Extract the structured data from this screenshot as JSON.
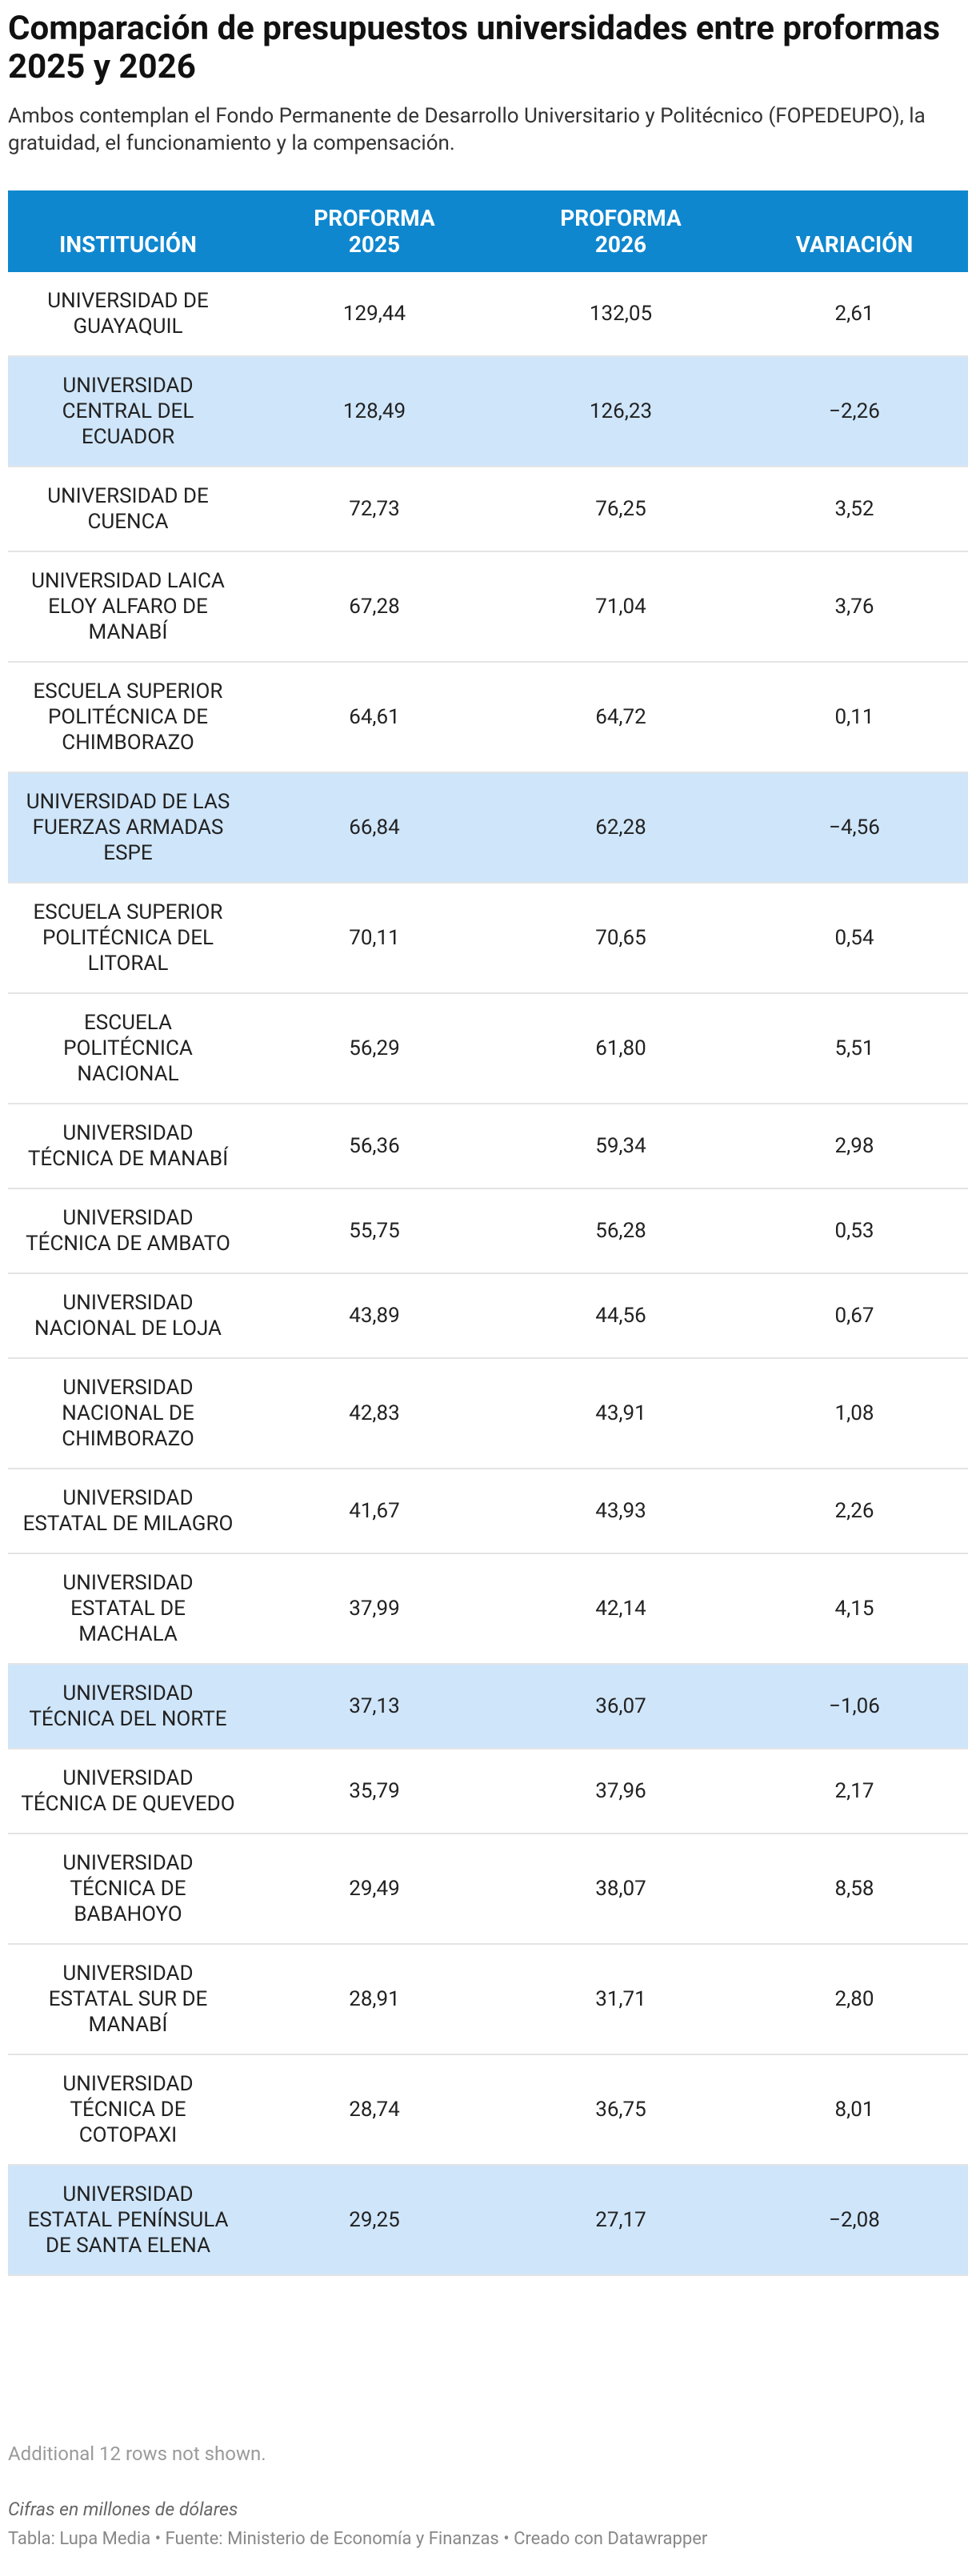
{
  "header": {
    "title": "Comparación de presupuestos universidades entre proformas 2025 y 2026",
    "subtitle": "Ambos contemplan el Fondo Permanente de Desarrollo Universitario y Politécnico (FOPEDEUPO), la gratuidad, el funcionamiento y la compensación."
  },
  "table": {
    "columns": [
      "INSTITUCIÓN",
      "PROFORMA 2025",
      "PROFORMA 2026",
      "VARIACIÓN"
    ],
    "rows": [
      [
        "UNIVERSIDAD DE GUAYAQUIL",
        "129,44",
        "132,05",
        "2,61"
      ],
      [
        "UNIVERSIDAD CENTRAL DEL ECUADOR",
        "128,49",
        "126,23",
        "−2,26"
      ],
      [
        "UNIVERSIDAD DE CUENCA",
        "72,73",
        "76,25",
        "3,52"
      ],
      [
        "UNIVERSIDAD LAICA ELOY ALFARO DE MANABÍ",
        "67,28",
        "71,04",
        "3,76"
      ],
      [
        "ESCUELA SUPERIOR POLITÉCNICA DE CHIMBORAZO",
        "64,61",
        "64,72",
        "0,11"
      ],
      [
        "UNIVERSIDAD DE LAS FUERZAS ARMADAS ESPE",
        "66,84",
        "62,28",
        "−4,56"
      ],
      [
        "ESCUELA SUPERIOR POLITÉCNICA DEL LITORAL",
        "70,11",
        "70,65",
        "0,54"
      ],
      [
        "ESCUELA POLITÉCNICA NACIONAL",
        "56,29",
        "61,80",
        "5,51"
      ],
      [
        "UNIVERSIDAD TÉCNICA DE MANABÍ",
        "56,36",
        "59,34",
        "2,98"
      ],
      [
        "UNIVERSIDAD TÉCNICA DE AMBATO",
        "55,75",
        "56,28",
        "0,53"
      ],
      [
        "UNIVERSIDAD NACIONAL DE LOJA",
        "43,89",
        "44,56",
        "0,67"
      ],
      [
        "UNIVERSIDAD NACIONAL DE CHIMBORAZO",
        "42,83",
        "43,91",
        "1,08"
      ],
      [
        "UNIVERSIDAD ESTATAL DE MILAGRO",
        "41,67",
        "43,93",
        "2,26"
      ],
      [
        "UNIVERSIDAD ESTATAL DE MACHALA",
        "37,99",
        "42,14",
        "4,15"
      ],
      [
        "UNIVERSIDAD TÉCNICA DEL NORTE",
        "37,13",
        "36,07",
        "−1,06"
      ],
      [
        "UNIVERSIDAD TÉCNICA DE QUEVEDO",
        "35,79",
        "37,96",
        "2,17"
      ],
      [
        "UNIVERSIDAD TÉCNICA DE BABAHOYO",
        "29,49",
        "38,07",
        "8,58"
      ],
      [
        "UNIVERSIDAD ESTATAL SUR DE MANABÍ",
        "28,91",
        "31,71",
        "2,80"
      ],
      [
        "UNIVERSIDAD TÉCNICA DE COTOPAXI",
        "28,74",
        "36,75",
        "8,01"
      ],
      [
        "UNIVERSIDAD ESTATAL PENÍNSULA DE SANTA ELENA",
        "29,25",
        "27,17",
        "−2,08"
      ]
    ],
    "more_rows": "Additional 12 rows not shown."
  },
  "footer": {
    "note": "Cifras en millones de dólares",
    "source": "Tabla: Lupa Media • Fuente: Ministerio de Economía y Finanzas • Creado con Datawrapper"
  }
}
